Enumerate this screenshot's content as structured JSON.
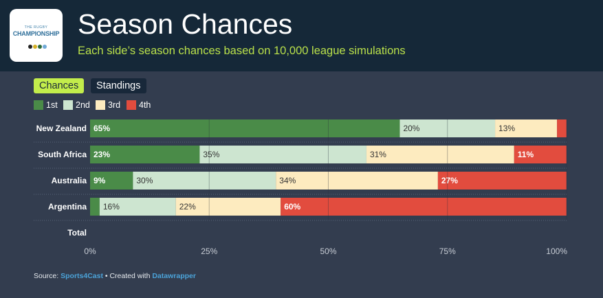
{
  "header": {
    "logo_small": "THE RUGBY",
    "logo_big": "CHAMPIONSHIP",
    "title": "Season Chances",
    "subtitle": "Each side’s season chances based on 10,000 league simulations"
  },
  "tabs": [
    {
      "label": "Chances",
      "active": true
    },
    {
      "label": "Standings",
      "active": false
    }
  ],
  "legend": [
    {
      "label": "1st",
      "color": "#4a8b48"
    },
    {
      "label": "2nd",
      "color": "#cde5d0"
    },
    {
      "label": "3rd",
      "color": "#fdebbf"
    },
    {
      "label": "4th",
      "color": "#e24c3e"
    }
  ],
  "total_label": "Total",
  "chart_data": {
    "type": "bar",
    "orientation": "horizontal",
    "stacked": true,
    "categories": [
      "New Zealand",
      "South Africa",
      "Australia",
      "Argentina"
    ],
    "series": [
      {
        "name": "1st",
        "values": [
          65,
          23,
          9,
          2
        ],
        "labels": [
          "65%",
          "23%",
          "9%",
          ""
        ]
      },
      {
        "name": "2nd",
        "values": [
          20,
          35,
          30,
          16
        ],
        "labels": [
          "20%",
          "35%",
          "30%",
          "16%"
        ]
      },
      {
        "name": "3rd",
        "values": [
          13,
          31,
          34,
          22
        ],
        "labels": [
          "13%",
          "31%",
          "34%",
          "22%"
        ]
      },
      {
        "name": "4th",
        "values": [
          2,
          11,
          27,
          60
        ],
        "labels": [
          "",
          "11%",
          "27%",
          "60%"
        ]
      }
    ],
    "xlim": [
      0,
      100
    ],
    "xticks": [
      "0%",
      "25%",
      "50%",
      "75%",
      "100%"
    ],
    "xtick_values": [
      0,
      25,
      50,
      75,
      100
    ],
    "grid": true,
    "legend_position": "top-left"
  },
  "footer": {
    "source_prefix": "Source: ",
    "source_name": "Sports4Cast",
    "created_text": " • Created with ",
    "tool_name": "Datawrapper"
  }
}
